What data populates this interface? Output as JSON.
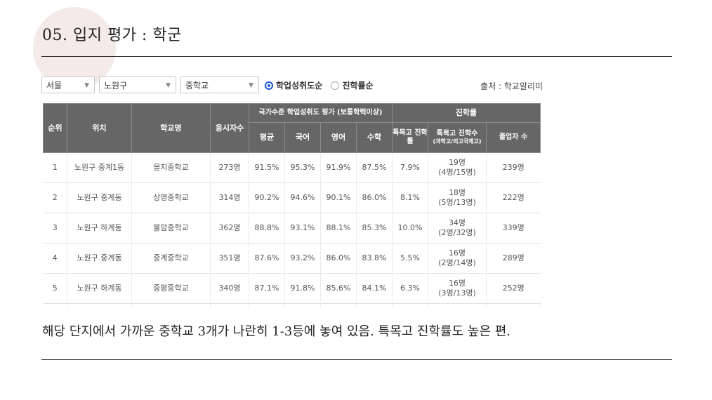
{
  "slide": {
    "title": "05. 입지 평가 : 학군",
    "comment": "해당 단지에서 가까운 중학교 3개가 나란히 1-3등에 놓여 있음. 특목고 진학률도 높은 편."
  },
  "filters": {
    "region": "서울",
    "district": "노원구",
    "school_type": "중학교",
    "sort_options": [
      {
        "label": "학업성취도순",
        "checked": true
      },
      {
        "label": "진학률순",
        "checked": false
      }
    ],
    "source": "출처 : 학교알리미"
  },
  "table": {
    "headers": {
      "rank": "순위",
      "location": "위치",
      "school": "학교명",
      "test_takers": "응시자수",
      "assessment_group": "국가수준 학업성취도 평가 (보통학력이상)",
      "avg": "평균",
      "korean": "국어",
      "english": "영어",
      "math": "수학",
      "advancement_group": "진학률",
      "special_rate": "특목고 진학률",
      "special_count": "특목고 진학수",
      "special_count_note": "(과학고/외고국제고)",
      "graduates": "졸업자 수"
    },
    "rows": [
      {
        "rank": "1",
        "location": "노원구 중계1동",
        "school": "을지중학교",
        "test_takers": "273명",
        "avg": "91.5%",
        "korean": "95.3%",
        "english": "91.9%",
        "math": "87.5%",
        "special_rate": "7.9%",
        "special_count": "19명",
        "special_breakdown": "(4명/15명)",
        "graduates": "239명"
      },
      {
        "rank": "2",
        "location": "노원구 중계동",
        "school": "상명중학교",
        "test_takers": "314명",
        "avg": "90.2%",
        "korean": "94.6%",
        "english": "90.1%",
        "math": "86.0%",
        "special_rate": "8.1%",
        "special_count": "18명",
        "special_breakdown": "(5명/13명)",
        "graduates": "222명"
      },
      {
        "rank": "3",
        "location": "노원구 하계동",
        "school": "불암중학교",
        "test_takers": "362명",
        "avg": "88.8%",
        "korean": "93.1%",
        "english": "88.1%",
        "math": "85.3%",
        "special_rate": "10.0%",
        "special_count": "34명",
        "special_breakdown": "(2명/32명)",
        "graduates": "339명"
      },
      {
        "rank": "4",
        "location": "노원구 중계동",
        "school": "중계중학교",
        "test_takers": "351명",
        "avg": "87.6%",
        "korean": "93.2%",
        "english": "86.0%",
        "math": "83.8%",
        "special_rate": "5.5%",
        "special_count": "16명",
        "special_breakdown": "(2명/14명)",
        "graduates": "289명"
      },
      {
        "rank": "5",
        "location": "노원구 하계동",
        "school": "중평중학교",
        "test_takers": "340명",
        "avg": "87.1%",
        "korean": "91.8%",
        "english": "85.6%",
        "math": "84.1%",
        "special_rate": "6.3%",
        "special_count": "16명",
        "special_breakdown": "(3명/13명)",
        "graduates": "252명"
      }
    ]
  }
}
